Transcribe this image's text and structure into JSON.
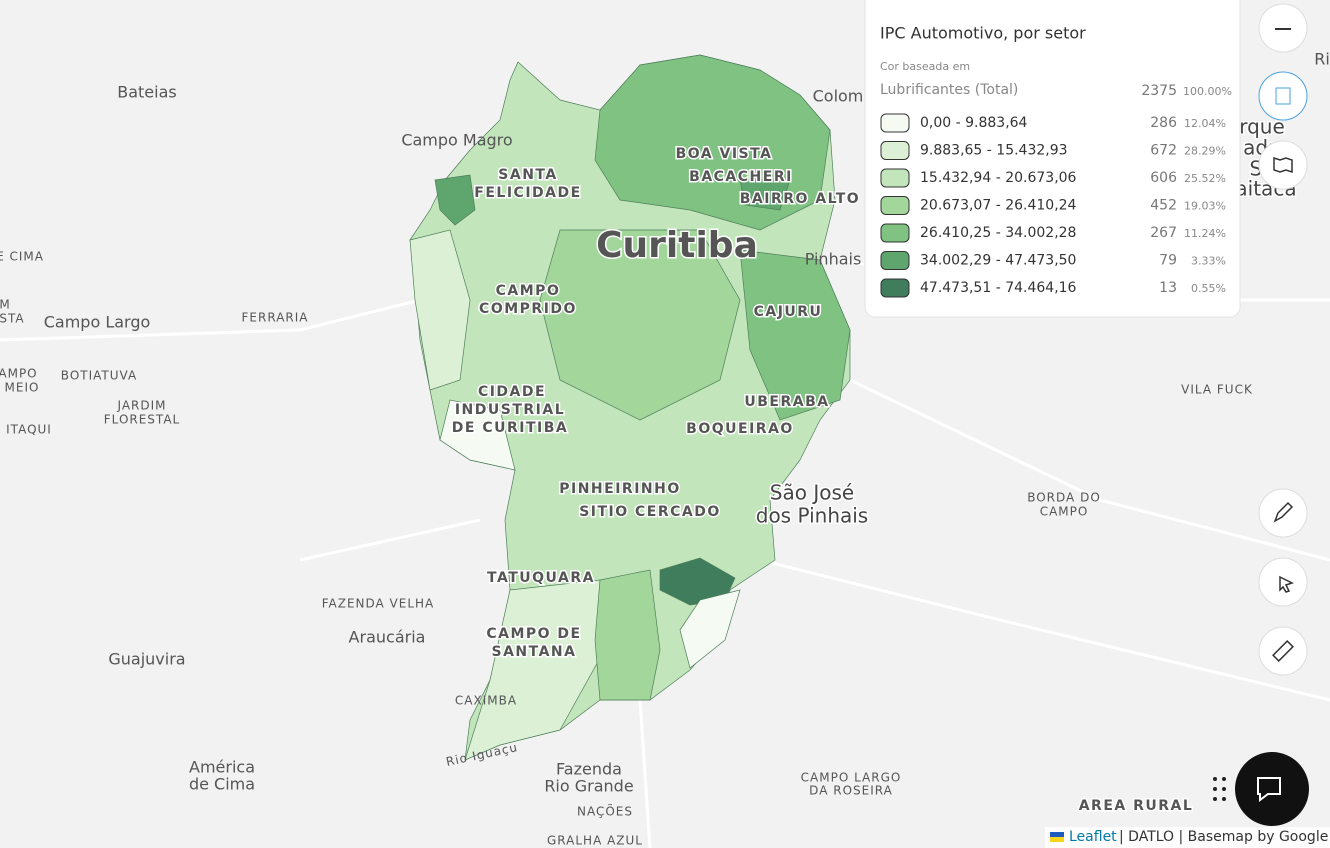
{
  "legend": {
    "title": "IPC Automotivo, por setor",
    "subtitle": "Cor baseada em",
    "variable": "Lubrificantes (Total)",
    "total": 2375,
    "total_percent": "100.00%",
    "classes": [
      {
        "range": "0,00 - 9.883,64",
        "count": 286,
        "percent": "12.04%",
        "color": "#f5fbf3"
      },
      {
        "range": "9.883,65 - 15.432,93",
        "count": 672,
        "percent": "28.29%",
        "color": "#dcf0d6"
      },
      {
        "range": "15.432,94 - 20.673,06",
        "count": 606,
        "percent": "25.52%",
        "color": "#c2e5bb"
      },
      {
        "range": "20.673,07 - 26.410,24",
        "count": 452,
        "percent": "19.03%",
        "color": "#a2d69b"
      },
      {
        "range": "26.410,25 - 34.002,28",
        "count": 267,
        "percent": "11.24%",
        "color": "#7fc282"
      },
      {
        "range": "34.002,29 - 47.473,50",
        "count": 79,
        "percent": "3.33%",
        "color": "#5ea56e"
      },
      {
        "range": "47.473,51 - 74.464,16",
        "count": 13,
        "percent": "0.55%",
        "color": "#3f7d5c"
      }
    ]
  },
  "map_labels": [
    "Bateias",
    "Campo Magro",
    "SANTA",
    "FELICIDADE",
    "BOA VISTA",
    "BACACHERI",
    "BAIRRO ALTO",
    "Colom",
    "Ri",
    "rque",
    "adu",
    "Se",
    "aitaca",
    "Curitiba",
    "Pinhais",
    "E CIMA",
    "M",
    "STA",
    "Campo Largo",
    "FERRARIA",
    "AMPO",
    "MEIO",
    "BOTIATUVA",
    "JARDIM",
    "FLORESTAL",
    "ITAQUI",
    "CAMPO",
    "COMPRIDO",
    "CAJURU",
    "CIDADE",
    "INDUSTRIAL",
    "DE CURITIBA",
    "UBERABA",
    "BOQUEIRAO",
    "VILA FUCK",
    "PINHEIRINHO",
    "SITIO CERCADO",
    "São José",
    "dos Pinhais",
    "BORDA DO",
    "CAMPO",
    "TATUQUARA",
    "FAZENDA VELHA",
    "Araucária",
    "Guajuvira",
    "CAMPO DE",
    "SANTANA",
    "CAXIMBA",
    "Rio Iguaçu",
    "América",
    "de Cima",
    "Fazenda",
    "Rio Grande",
    "NAÇÕES",
    "GRALHA AZUL",
    "CAMPO LARGO",
    "DA ROSEIRA",
    "AREA RURAL"
  ],
  "attribution": {
    "link": "Leaflet",
    "rest": "| DATLO | Basemap by Google"
  }
}
